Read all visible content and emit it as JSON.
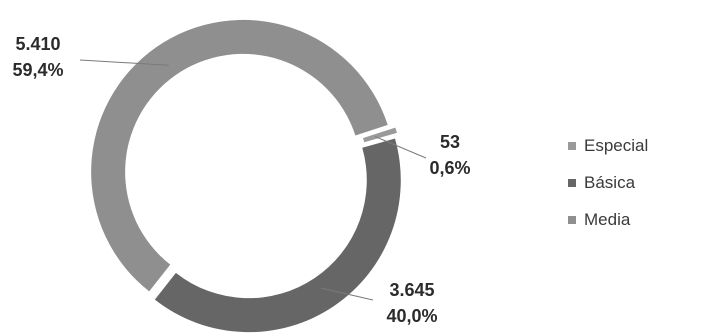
{
  "chart_data": {
    "type": "pie",
    "variant": "donut",
    "title": "",
    "series": [
      {
        "name": "",
        "categories": [
          "Especial",
          "Básica",
          "Media"
        ],
        "values": [
          53,
          3645,
          5410
        ],
        "value_labels": [
          "53",
          "3.645",
          "5.410"
        ],
        "percent_labels": [
          "0,6%",
          "40,0%",
          "59,4%"
        ],
        "colors": [
          "#9a9a9a",
          "#666666",
          "#8f8f8f"
        ]
      }
    ],
    "legend": {
      "placement": "right",
      "entries": [
        "Especial",
        "Básica",
        "Media"
      ]
    },
    "start_angle_deg": 72,
    "direction": "clockwise"
  }
}
